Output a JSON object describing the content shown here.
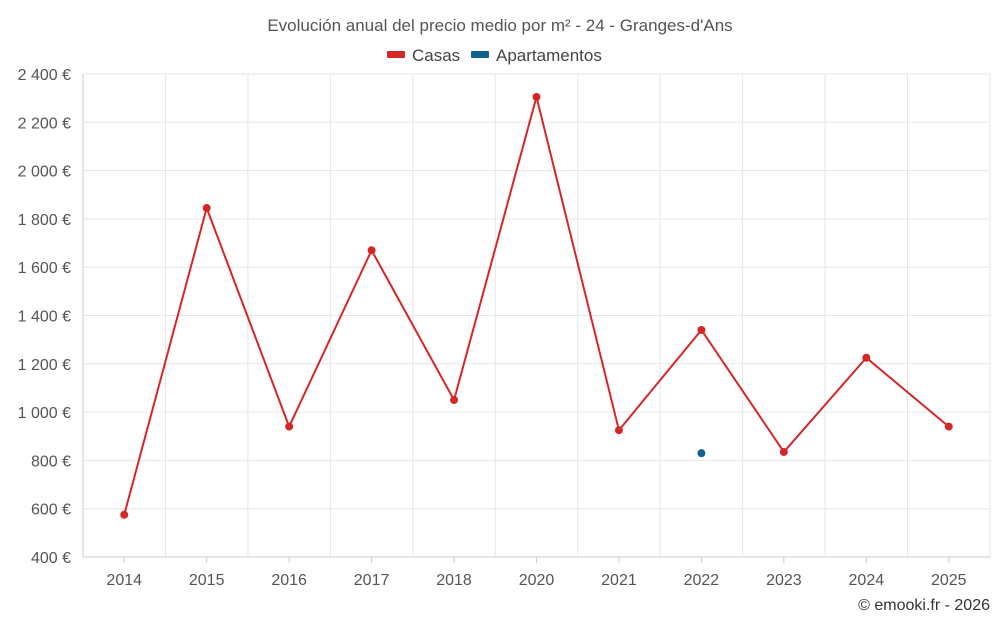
{
  "chart_data": {
    "type": "line",
    "title": "Evolución anual del precio medio por m² - 24 - Granges-d'Ans",
    "categories": [
      "2014",
      "2015",
      "2016",
      "2017",
      "2018",
      "2020",
      "2021",
      "2022",
      "2023",
      "2024",
      "2025"
    ],
    "ylim": [
      400,
      2400
    ],
    "yticks": [
      400,
      600,
      800,
      1000,
      1200,
      1400,
      1600,
      1800,
      2000,
      2200,
      2400
    ],
    "ytick_labels": [
      "400 €",
      "600 €",
      "800 €",
      "1 000 €",
      "1 200 €",
      "1 400 €",
      "1 600 €",
      "1 800 €",
      "2 000 €",
      "2 200 €",
      "2 400 €"
    ],
    "grid": true,
    "legend_position": "top-center",
    "series": [
      {
        "name": "Casas",
        "color": "#d62728",
        "values": [
          575,
          1845,
          940,
          1670,
          1050,
          2305,
          925,
          1340,
          835,
          1225,
          940
        ]
      },
      {
        "name": "Apartamentos",
        "color": "#0d6296",
        "values": [
          null,
          null,
          null,
          null,
          null,
          null,
          null,
          830,
          null,
          null,
          null
        ]
      }
    ]
  },
  "credit": "© emooki.fr - 2026"
}
